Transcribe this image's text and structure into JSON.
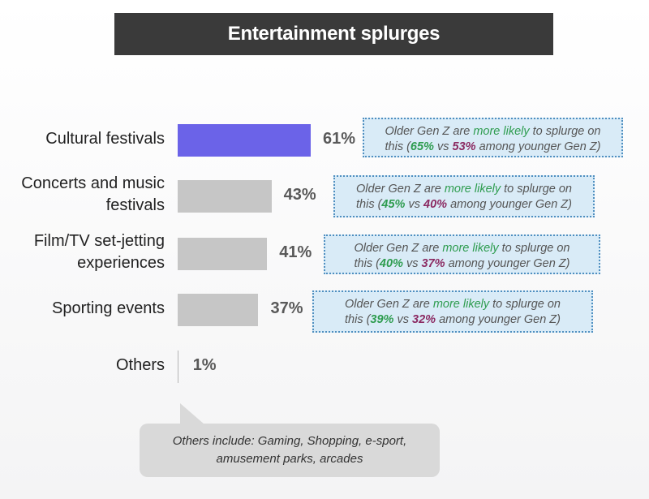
{
  "title": "Entertainment splurges",
  "chart_data": {
    "type": "bar",
    "orientation": "horizontal",
    "categories": [
      "Cultural festivals",
      "Concerts and music festivals",
      "Film/TV set-jetting experiences",
      "Sporting events",
      "Others"
    ],
    "category_lines": [
      [
        "Cultural festivals"
      ],
      [
        "Concerts and music",
        "festivals"
      ],
      [
        "Film/TV set-jetting",
        "experiences"
      ],
      [
        "Sporting events"
      ],
      [
        "Others"
      ]
    ],
    "values": [
      61,
      43,
      41,
      37,
      1
    ],
    "value_labels": [
      "61%",
      "43%",
      "41%",
      "37%",
      "1%"
    ],
    "highlight_index": 0,
    "colors": {
      "highlight": "#6b63e8",
      "default": "#c6c6c6"
    },
    "notes": [
      {
        "line1_prefix": "Older Gen Z are ",
        "line1_emph": "more likely",
        "line1_suffix": " to splurge on",
        "line2_prefix": "this (",
        "older": "65%",
        "vs": " vs ",
        "younger": "53%",
        "line2_suffix": " among younger Gen Z)"
      },
      {
        "line1_prefix": "Older Gen Z are ",
        "line1_emph": "more likely",
        "line1_suffix": " to splurge on",
        "line2_prefix": "this (",
        "older": "45%",
        "vs": " vs ",
        "younger": "40%",
        "line2_suffix": " among younger Gen Z)"
      },
      {
        "line1_prefix": "Older Gen Z are ",
        "line1_emph": "more likely",
        "line1_suffix": " to splurge on",
        "line2_prefix": "this (",
        "older": "40%",
        "vs": " vs ",
        "younger": "37%",
        "line2_suffix": " among younger Gen Z)"
      },
      {
        "line1_prefix": "Older Gen Z are ",
        "line1_emph": "more likely",
        "line1_suffix": " to splurge on",
        "line2_prefix": "this (",
        "older": "39%",
        "vs": " vs ",
        "younger": "32%",
        "line2_suffix": " among younger Gen Z)"
      }
    ],
    "callout": "Others include: Gaming, Shopping, e-sport, amusement parks, arcades"
  }
}
